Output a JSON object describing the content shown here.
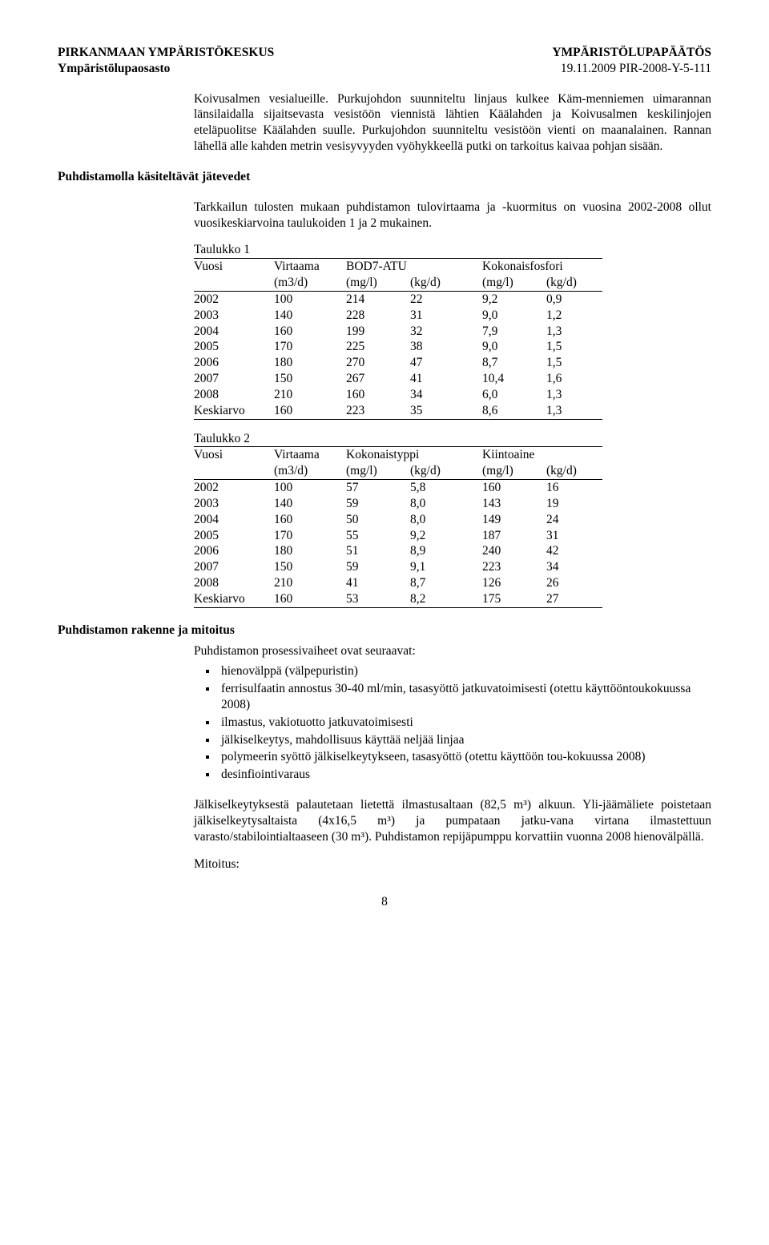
{
  "header": {
    "left_top": "PIRKANMAAN YMPÄRISTÖKESKUS",
    "right_top": "YMPÄRISTÖLUPAPÄÄTÖS",
    "left_sub": "Ympäristölupaosasto",
    "right_sub": "19.11.2009     PIR-2008-Y-5-111"
  },
  "para1": "Koivusalmen vesialueille. Purkujohdon suunniteltu linjaus kulkee Käm-menniemen uimarannan länsilaidalla sijaitsevasta vesistöön viennistä lähtien Käälahden ja Koivusalmen keskilinjojen eteläpuolitse Käälahden suulle. Purkujohdon suunniteltu vesistöön vienti on maanalainen. Rannan lähellä alle kahden metrin vesisyvyyden vyöhykkeellä putki on tarkoitus kaivaa pohjan sisään.",
  "sec1_heading": "Puhdistamolla käsiteltävät jätevedet",
  "sec1_para": "Tarkkailun tulosten mukaan puhdistamon tulovirtaama ja -kuormitus on vuosina 2002-2008 ollut vuosikeskiarvoina taulukoiden 1 ja 2 mukainen.",
  "table1": {
    "caption": "Taulukko 1",
    "head_year": "Vuosi",
    "head_flow": "Virtaama",
    "head_flow_unit": "(m3/d)",
    "head_col2": "BOD7-ATU",
    "head_col2a_unit": "(mg/l)",
    "head_col2b_unit": "(kg/d)",
    "head_col3": "Kokonaisfosfori",
    "head_col3a_unit": "(mg/l)",
    "head_col3b_unit": "(kg/d)",
    "rows": [
      [
        "2002",
        "100",
        "214",
        "22",
        "9,2",
        "0,9"
      ],
      [
        "2003",
        "140",
        "228",
        "31",
        "9,0",
        "1,2"
      ],
      [
        "2004",
        "160",
        "199",
        "32",
        "7,9",
        "1,3"
      ],
      [
        "2005",
        "170",
        "225",
        "38",
        "9,0",
        "1,5"
      ],
      [
        "2006",
        "180",
        "270",
        "47",
        "8,7",
        "1,5"
      ],
      [
        "2007",
        "150",
        "267",
        "41",
        "10,4",
        "1,6"
      ],
      [
        "2008",
        "210",
        "160",
        "34",
        "6,0",
        "1,3"
      ],
      [
        "Keskiarvo",
        "160",
        "223",
        "35",
        "8,6",
        "1,3"
      ]
    ]
  },
  "table2": {
    "caption": "Taulukko 2",
    "head_year": "Vuosi",
    "head_flow": "Virtaama",
    "head_flow_unit": "(m3/d)",
    "head_col2": "Kokonaistyppi",
    "head_col2a_unit": "(mg/l)",
    "head_col2b_unit": "(kg/d)",
    "head_col3": "Kiintoaine",
    "head_col3a_unit": "(mg/l)",
    "head_col3b_unit": "(kg/d)",
    "rows": [
      [
        "2002",
        "100",
        "57",
        "5,8",
        "160",
        "16"
      ],
      [
        "2003",
        "140",
        "59",
        "8,0",
        "143",
        "19"
      ],
      [
        "2004",
        "160",
        "50",
        "8,0",
        "149",
        "24"
      ],
      [
        "2005",
        "170",
        "55",
        "9,2",
        "187",
        "31"
      ],
      [
        "2006",
        "180",
        "51",
        "8,9",
        "240",
        "42"
      ],
      [
        "2007",
        "150",
        "59",
        "9,1",
        "223",
        "34"
      ],
      [
        "2008",
        "210",
        "41",
        "8,7",
        "126",
        "26"
      ],
      [
        "Keskiarvo",
        "160",
        "53",
        "8,2",
        "175",
        "27"
      ]
    ]
  },
  "sec2_heading": "Puhdistamon rakenne ja mitoitus",
  "sec2_para1": "Puhdistamon prosessivaiheet ovat seuraavat:",
  "bullets": [
    "hienovälppä (välpepuristin)",
    "ferrisulfaatin annostus 30-40 ml/min, tasasyöttö jatkuvatoimisesti (otettu käyttööntoukokuussa 2008)",
    "ilmastus, vakiotuotto jatkuvatoimisesti",
    "jälkiselkeytys, mahdollisuus käyttää neljää linjaa",
    "polymeerin syöttö jälkiselkeytykseen, tasasyöttö (otettu käyttöön tou-kokuussa 2008)",
    "desinfiointivaraus"
  ],
  "sec2_para2": "Jälkiselkeytyksestä palautetaan lietettä ilmastusaltaan (82,5 m³) alkuun. Yli-jäämäliete poistetaan jälkiselkeytysaltaista (4x16,5 m³) ja pumpataan jatku-vana virtana ilmastettuun varasto/stabilointialtaaseen (30 m³). Puhdistamon repijäpumppu korvattiin vuonna 2008 hienovälpällä.",
  "mitoitus": "Mitoitus:",
  "page_number": "8"
}
